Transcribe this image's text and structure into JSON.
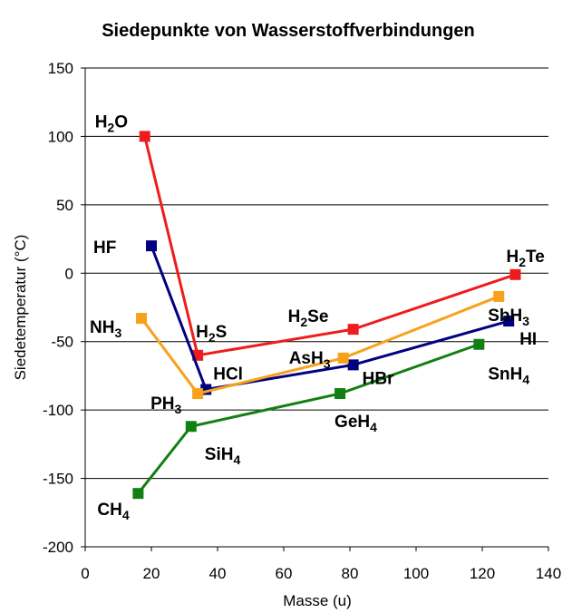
{
  "chart_data": {
    "type": "line",
    "title": "Siedepunkte von Wasserstoffverbindungen",
    "xlabel": "Masse (u)",
    "ylabel": "Siedetemperatur (°C)",
    "xlim": [
      0,
      140
    ],
    "ylim": [
      -200,
      150
    ],
    "x_ticks": [
      0,
      20,
      40,
      60,
      80,
      100,
      120,
      140
    ],
    "y_ticks": [
      150,
      100,
      50,
      0,
      -50,
      -100,
      -150,
      -200
    ],
    "horizontal_grid": true,
    "legend": "none",
    "series": [
      {
        "color": "#ee1c1c",
        "points": [
          {
            "x": 18,
            "y": 100,
            "label": "H",
            "sub": "2",
            "suffix": "O"
          },
          {
            "x": 34,
            "y": -60,
            "label": "H",
            "sub": "2",
            "suffix": "S"
          },
          {
            "x": 81,
            "y": -41,
            "label": "H",
            "sub": "2",
            "suffix": "Se"
          },
          {
            "x": 130,
            "y": -1,
            "label": "H",
            "sub": "2",
            "suffix": "Te"
          }
        ]
      },
      {
        "color": "#000080",
        "points": [
          {
            "x": 20,
            "y": 20,
            "label": "HF",
            "sub": "",
            "suffix": ""
          },
          {
            "x": 36.5,
            "y": -85,
            "label": "HCl",
            "sub": "",
            "suffix": ""
          },
          {
            "x": 81,
            "y": -67,
            "label": "HBr",
            "sub": "",
            "suffix": ""
          },
          {
            "x": 128,
            "y": -35,
            "label": "HI",
            "sub": "",
            "suffix": ""
          }
        ]
      },
      {
        "color": "#f8a21b",
        "points": [
          {
            "x": 17,
            "y": -33,
            "label": "NH",
            "sub": "3",
            "suffix": ""
          },
          {
            "x": 34,
            "y": -88,
            "label": "PH",
            "sub": "3",
            "suffix": ""
          },
          {
            "x": 78,
            "y": -62,
            "label": "AsH",
            "sub": "3",
            "suffix": ""
          },
          {
            "x": 125,
            "y": -17,
            "label": "SbH",
            "sub": "3",
            "suffix": ""
          }
        ]
      },
      {
        "color": "#127f12",
        "points": [
          {
            "x": 16,
            "y": -161,
            "label": "CH",
            "sub": "4",
            "suffix": ""
          },
          {
            "x": 32,
            "y": -112,
            "label": "SiH",
            "sub": "4",
            "suffix": ""
          },
          {
            "x": 77,
            "y": -88,
            "label": "GeH",
            "sub": "4",
            "suffix": ""
          },
          {
            "x": 119,
            "y": -52,
            "label": "SnH",
            "sub": "4",
            "suffix": ""
          }
        ]
      }
    ]
  }
}
